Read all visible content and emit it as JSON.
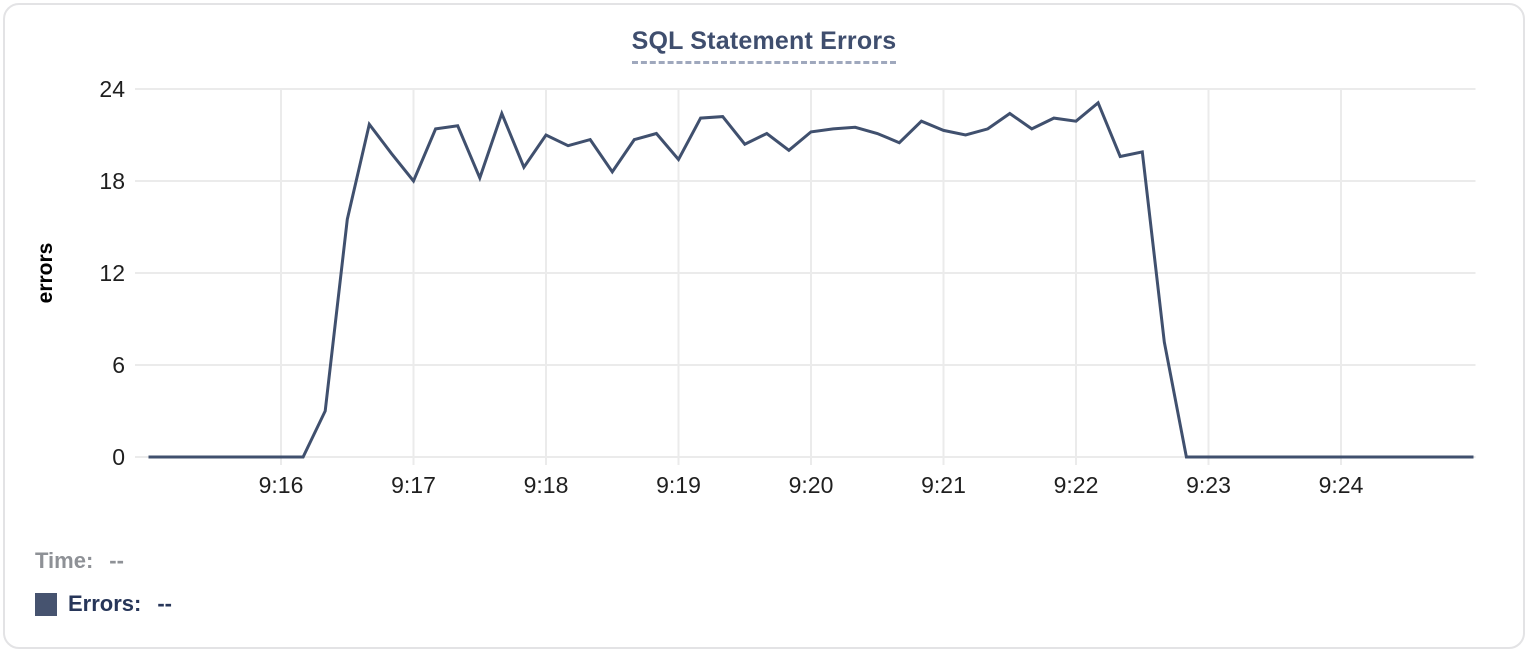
{
  "chart": {
    "title": "SQL Statement Errors"
  },
  "legend": {
    "time_label": "Time:",
    "time_value": "--",
    "errors_label": "Errors:",
    "errors_value": "--",
    "swatch_color": "#46536f"
  },
  "colors": {
    "line": "#40506e",
    "grid": "#ebebeb",
    "tick_text": "#1f1f1f",
    "axis_title_text": "#000000",
    "title_text": "#3f4e6e",
    "title_underline": "#9fa8bd",
    "card_border": "#e3e3e5",
    "time_label_gray": "#8e9196",
    "errors_label_navy": "#273659"
  },
  "chart_data": {
    "type": "line",
    "title": "SQL Statement Errors",
    "xlabel": "",
    "ylabel": "errors",
    "ylim": [
      0,
      24
    ],
    "y_ticks": [
      0,
      6,
      12,
      18,
      24
    ],
    "x_tick_labels": [
      "9:16",
      "9:17",
      "9:18",
      "9:19",
      "9:20",
      "9:21",
      "9:22",
      "9:23",
      "9:24"
    ],
    "x_range": [
      "9:15:00",
      "9:25:00"
    ],
    "interval_seconds": 10,
    "grid": true,
    "legend_position": "bottom-left",
    "series": [
      {
        "name": "Errors",
        "color": "#40506e",
        "x_times": [
          "9:15:00",
          "9:15:10",
          "9:15:20",
          "9:15:30",
          "9:15:40",
          "9:15:50",
          "9:16:00",
          "9:16:10",
          "9:16:20",
          "9:16:30",
          "9:16:40",
          "9:16:50",
          "9:17:00",
          "9:17:10",
          "9:17:20",
          "9:17:30",
          "9:17:40",
          "9:17:50",
          "9:18:00",
          "9:18:10",
          "9:18:20",
          "9:18:30",
          "9:18:40",
          "9:18:50",
          "9:19:00",
          "9:19:10",
          "9:19:20",
          "9:19:30",
          "9:19:40",
          "9:19:50",
          "9:20:00",
          "9:20:10",
          "9:20:20",
          "9:20:30",
          "9:20:40",
          "9:20:50",
          "9:21:00",
          "9:21:10",
          "9:21:20",
          "9:21:30",
          "9:21:40",
          "9:21:50",
          "9:22:00",
          "9:22:10",
          "9:22:20",
          "9:22:30",
          "9:22:40",
          "9:22:50",
          "9:23:00",
          "9:23:10",
          "9:23:20",
          "9:23:30",
          "9:23:40",
          "9:23:50",
          "9:24:00",
          "9:24:10",
          "9:24:20",
          "9:24:30",
          "9:24:40",
          "9:24:50",
          "9:25:00"
        ],
        "values": [
          0,
          0,
          0,
          0,
          0,
          0,
          0,
          0,
          3,
          15.5,
          21.7,
          19.8,
          18,
          21.4,
          21.6,
          18.2,
          22.4,
          18.9,
          21,
          20.3,
          20.7,
          18.6,
          20.7,
          21.1,
          19.4,
          22.1,
          22.2,
          20.4,
          21.1,
          20,
          21.2,
          21.4,
          21.5,
          21.1,
          20.5,
          21.9,
          21.3,
          21,
          21.4,
          22.4,
          21.4,
          22.1,
          21.9,
          23.1,
          19.6,
          19.9,
          7.5,
          0,
          0,
          0,
          0,
          0,
          0,
          0,
          0,
          0,
          0,
          0,
          0,
          0,
          0
        ]
      }
    ]
  }
}
